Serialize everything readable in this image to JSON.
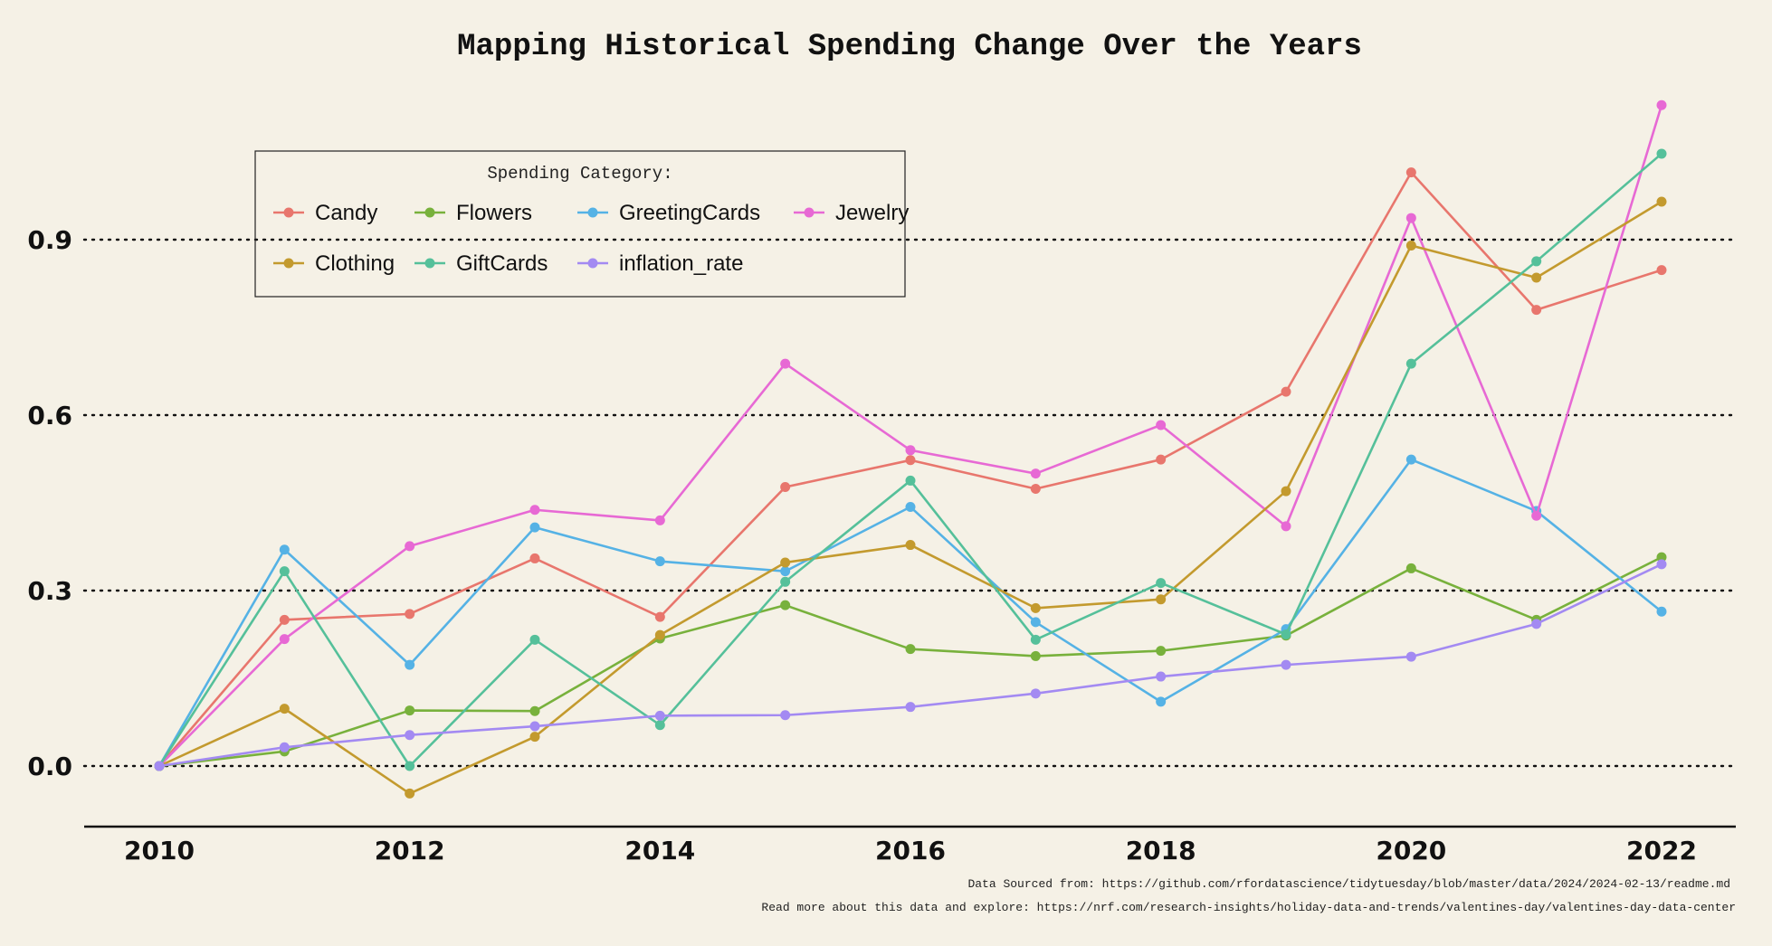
{
  "chart_data": {
    "type": "line",
    "title": "Mapping Historical Spending Change Over the Years",
    "xlabel": "",
    "ylabel": "",
    "x": [
      2010,
      2011,
      2012,
      2013,
      2014,
      2015,
      2016,
      2017,
      2018,
      2019,
      2020,
      2021,
      2022
    ],
    "x_ticks": [
      2010,
      2012,
      2014,
      2016,
      2018,
      2020,
      2022
    ],
    "y_ticks": [
      "0.0",
      "0.3",
      "0.6",
      "0.9"
    ],
    "y_tick_values": [
      0.0,
      0.3,
      0.6,
      0.9
    ],
    "xlim": [
      2009.4,
      2022.6
    ],
    "ylim": [
      -0.105,
      1.17
    ],
    "grid": "horizontal dotted",
    "legend": {
      "title": "Spending Category:",
      "placement": "top-left"
    },
    "series": [
      {
        "name": "Candy",
        "color": "#e8766d",
        "values": [
          0.0,
          0.25,
          0.26,
          0.355,
          0.255,
          0.477,
          0.523,
          0.474,
          0.524,
          0.64,
          1.015,
          0.78,
          0.848
        ]
      },
      {
        "name": "Flowers",
        "color": "#78b13c",
        "values": [
          0.0,
          0.025,
          0.095,
          0.094,
          0.218,
          0.275,
          0.2,
          0.188,
          0.197,
          0.223,
          0.338,
          0.25,
          0.357
        ]
      },
      {
        "name": "GreetingCards",
        "color": "#55b2e5",
        "values": [
          0.0,
          0.37,
          0.173,
          0.408,
          0.35,
          0.333,
          0.443,
          0.246,
          0.11,
          0.234,
          0.524,
          0.436,
          0.264
        ]
      },
      {
        "name": "Jewelry",
        "color": "#e769d4",
        "values": [
          0.0,
          0.217,
          0.376,
          0.438,
          0.42,
          0.688,
          0.54,
          0.5,
          0.583,
          0.41,
          0.937,
          0.428,
          1.13
        ]
      },
      {
        "name": "Clothing",
        "color": "#c39a2e",
        "values": [
          0.0,
          0.098,
          -0.047,
          0.05,
          0.224,
          0.348,
          0.378,
          0.27,
          0.285,
          0.47,
          0.89,
          0.835,
          0.965
        ]
      },
      {
        "name": "GiftCards",
        "color": "#55c09a",
        "values": [
          0.0,
          0.333,
          0.0,
          0.216,
          0.07,
          0.315,
          0.488,
          0.216,
          0.313,
          0.225,
          0.688,
          0.863,
          1.047
        ]
      },
      {
        "name": "inflation_rate",
        "color": "#a38af2",
        "values": [
          0.0,
          0.032,
          0.053,
          0.068,
          0.086,
          0.087,
          0.101,
          0.124,
          0.153,
          0.173,
          0.187,
          0.243,
          0.345
        ]
      }
    ],
    "captions": [
      "Data Sourced from: https://github.com/rfordatascience/tidytuesday/blob/master/data/2024/2024-02-13/readme.md",
      "Read more about this data and explore: https://nrf.com/research-insights/holiday-data-and-trends/valentines-day/valentines-day-data-center"
    ]
  }
}
